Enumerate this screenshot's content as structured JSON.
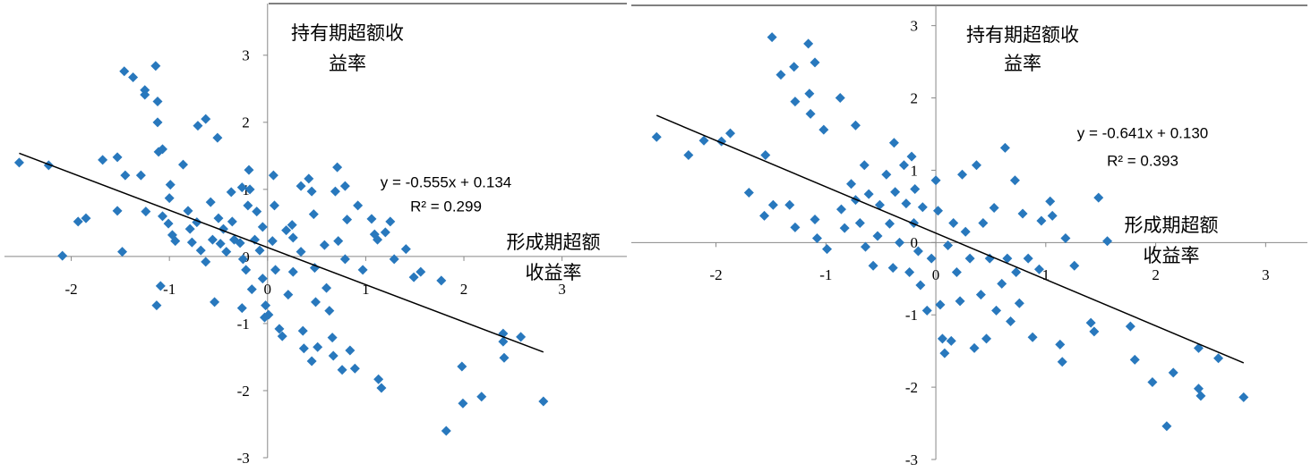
{
  "chart_data": [
    {
      "type": "scatter",
      "color": "#2878bd",
      "xlim": [
        -2.68,
        3.66
      ],
      "ylim": [
        -3,
        3.77
      ],
      "xticks": [
        -2,
        -1,
        0,
        1,
        2,
        3
      ],
      "yticks": [
        -3,
        -2,
        -1,
        0,
        1,
        2,
        3
      ],
      "xlabel_lines": [
        "形成期超额",
        "收益率"
      ],
      "ylabel_lines": [
        "持有期超额收",
        "益率"
      ],
      "trendline": {
        "slope": -0.555,
        "intercept": 0.134,
        "equation": "y = -0.555x + 0.134",
        "r2": "R² = 0.299"
      },
      "x": [
        -2.53,
        -2.23,
        -2.09,
        -1.93,
        -1.85,
        -1.68,
        -1.53,
        -1.53,
        -1.48,
        -1.46,
        -1.37,
        -1.25,
        -1.25,
        -1.45,
        -1.29,
        -1.24,
        -1.14,
        -1.12,
        -1.12,
        -1.11,
        -1.07,
        -1.09,
        -1.13,
        -1.07,
        -1.01,
        -1.0,
        -0.99,
        -0.97,
        -0.94,
        -0.86,
        -0.81,
        -0.79,
        -0.77,
        -0.71,
        -0.63,
        -0.72,
        -0.68,
        -0.63,
        -0.58,
        -0.56,
        -0.54,
        -0.51,
        -0.5,
        -0.48,
        -0.45,
        -0.42,
        -0.37,
        -0.36,
        -0.34,
        -0.28,
        -0.26,
        -0.25,
        -0.22,
        -0.2,
        -0.16,
        -0.13,
        -0.11,
        -0.19,
        -0.18,
        -0.08,
        -0.05,
        -0.05,
        -0.26,
        -0.02,
        -0.03,
        0.01,
        0.05,
        0.06,
        0.07,
        0.08,
        0.12,
        0.15,
        0.19,
        0.21,
        0.25,
        0.26,
        0.26,
        0.34,
        0.34,
        0.36,
        0.37,
        0.42,
        0.45,
        0.47,
        0.48,
        0.49,
        0.51,
        0.45,
        0.58,
        0.6,
        0.63,
        0.66,
        0.67,
        0.69,
        0.71,
        0.72,
        0.76,
        0.79,
        0.79,
        0.81,
        0.84,
        0.89,
        0.92,
        0.97,
        1.06,
        1.09,
        1.12,
        1.13,
        1.16,
        1.2,
        1.25,
        1.29,
        1.41,
        1.49,
        1.56,
        1.77,
        1.98,
        1.99,
        2.18,
        1.82,
        2.4,
        2.4,
        2.41,
        2.58,
        2.81
      ],
      "values": [
        1.4,
        1.36,
        0.01,
        0.52,
        0.57,
        1.44,
        1.48,
        0.68,
        0.07,
        2.76,
        2.67,
        2.48,
        2.41,
        1.21,
        1.21,
        0.67,
        2.84,
        2.31,
        2.0,
        1.56,
        1.6,
        -0.44,
        -0.73,
        0.6,
        0.49,
        0.87,
        1.07,
        0.32,
        0.23,
        1.37,
        0.68,
        0.41,
        0.21,
        1.95,
        2.05,
        0.51,
        0.09,
        -0.08,
        0.81,
        0.25,
        -0.68,
        1.77,
        0.57,
        0.19,
        0.41,
        0.07,
        0.96,
        0.52,
        0.25,
        0.2,
        1.03,
        -0.04,
        -0.2,
        0.76,
        -0.49,
        0.25,
        0.67,
        1.29,
        1.0,
        0.09,
        0.44,
        -0.33,
        -0.77,
        -0.73,
        -0.91,
        -0.87,
        0.23,
        1.21,
        0.76,
        -0.2,
        -1.08,
        -1.19,
        0.39,
        -0.57,
        0.47,
        0.28,
        -0.23,
        1.05,
        0.07,
        -1.11,
        -1.37,
        1.16,
        0.97,
        0.63,
        -0.17,
        -0.68,
        -1.35,
        -1.56,
        0.17,
        -0.47,
        -0.81,
        -1.21,
        -1.48,
        0.97,
        1.33,
        0.23,
        -1.69,
        1.05,
        -0.04,
        0.55,
        -1.4,
        -1.67,
        0.76,
        -0.2,
        0.56,
        0.33,
        0.25,
        -1.83,
        -1.96,
        0.36,
        0.52,
        -0.04,
        0.11,
        -0.31,
        -0.23,
        -0.36,
        -1.64,
        -2.19,
        -2.09,
        -2.6,
        -1.15,
        -1.27,
        -1.51,
        -1.2,
        -2.16
      ]
    },
    {
      "type": "scatter",
      "color": "#2878bd",
      "xlim": [
        -2.77,
        3.38
      ],
      "ylim": [
        -3,
        3.28
      ],
      "xticks": [
        -2,
        -1,
        0,
        1,
        2,
        3
      ],
      "yticks": [
        -3,
        -2,
        -1,
        0,
        1,
        2,
        3
      ],
      "xlabel_lines": [
        "形成期超额",
        "收益率"
      ],
      "ylabel_lines": [
        "持有期超额收",
        "益率"
      ],
      "trendline": {
        "slope": -0.641,
        "intercept": 0.13,
        "equation": "y = -0.641x + 0.130",
        "r2": "R² = 0.393"
      },
      "x": [
        -2.54,
        -2.25,
        -2.11,
        -1.95,
        -1.87,
        -1.7,
        -1.55,
        -1.56,
        -1.49,
        -1.48,
        -1.41,
        -1.29,
        -1.28,
        -1.33,
        -1.28,
        -1.16,
        -1.15,
        -1.14,
        -1.1,
        -1.1,
        -1.08,
        -1.02,
        -0.99,
        -0.87,
        -0.86,
        -0.83,
        -0.77,
        -0.73,
        -0.73,
        -0.69,
        -0.65,
        -0.64,
        -0.61,
        -0.57,
        -0.53,
        -0.51,
        -0.45,
        -0.42,
        -0.39,
        -0.38,
        -0.37,
        -0.33,
        -0.29,
        -0.27,
        -0.24,
        -0.22,
        -0.2,
        -0.19,
        -0.16,
        -0.14,
        -0.12,
        -0.08,
        -0.04,
        0.0,
        0.02,
        0.04,
        0.06,
        0.08,
        0.11,
        0.14,
        0.16,
        0.19,
        0.22,
        0.24,
        0.27,
        0.31,
        0.35,
        0.37,
        0.41,
        0.43,
        0.46,
        0.49,
        0.53,
        0.55,
        0.6,
        0.63,
        0.65,
        0.68,
        0.72,
        0.73,
        0.76,
        0.79,
        0.84,
        0.88,
        0.94,
        0.96,
        1.04,
        1.06,
        1.13,
        1.15,
        1.18,
        1.26,
        1.48,
        1.41,
        1.44,
        1.56,
        1.77,
        1.81,
        1.97,
        2.1,
        2.16,
        2.39,
        2.39,
        2.41,
        2.57,
        2.8
      ],
      "values": [
        1.46,
        1.21,
        1.41,
        1.4,
        1.51,
        0.69,
        1.21,
        0.37,
        2.84,
        0.52,
        2.32,
        2.43,
        1.95,
        0.52,
        0.21,
        2.75,
        2.06,
        1.78,
        2.49,
        0.32,
        0.06,
        1.56,
        -0.09,
        2.0,
        0.46,
        0.2,
        0.81,
        1.62,
        0.59,
        0.27,
        1.07,
        -0.06,
        0.67,
        -0.32,
        0.09,
        0.52,
        0.94,
        0.26,
        -0.35,
        1.38,
        0.7,
        0.0,
        1.07,
        0.54,
        -0.41,
        1.19,
        0.27,
        0.74,
        -0.12,
        -0.59,
        0.49,
        -0.94,
        -0.22,
        0.86,
        0.44,
        -0.86,
        -1.33,
        -1.53,
        -0.04,
        -1.36,
        0.27,
        -0.41,
        -0.81,
        0.94,
        0.15,
        -0.22,
        -1.46,
        1.07,
        -0.72,
        0.27,
        -1.33,
        -0.22,
        0.48,
        -0.94,
        -0.57,
        1.31,
        -0.22,
        -1.09,
        0.86,
        -0.41,
        -0.84,
        0.4,
        -0.22,
        -1.31,
        -0.37,
        0.3,
        0.57,
        0.37,
        -1.41,
        -1.65,
        0.06,
        -0.32,
        0.62,
        -1.11,
        -1.23,
        0.02,
        -1.16,
        -1.62,
        -1.93,
        -2.54,
        -1.8,
        -1.46,
        -2.02,
        -2.12,
        -1.6,
        -2.14
      ]
    }
  ]
}
